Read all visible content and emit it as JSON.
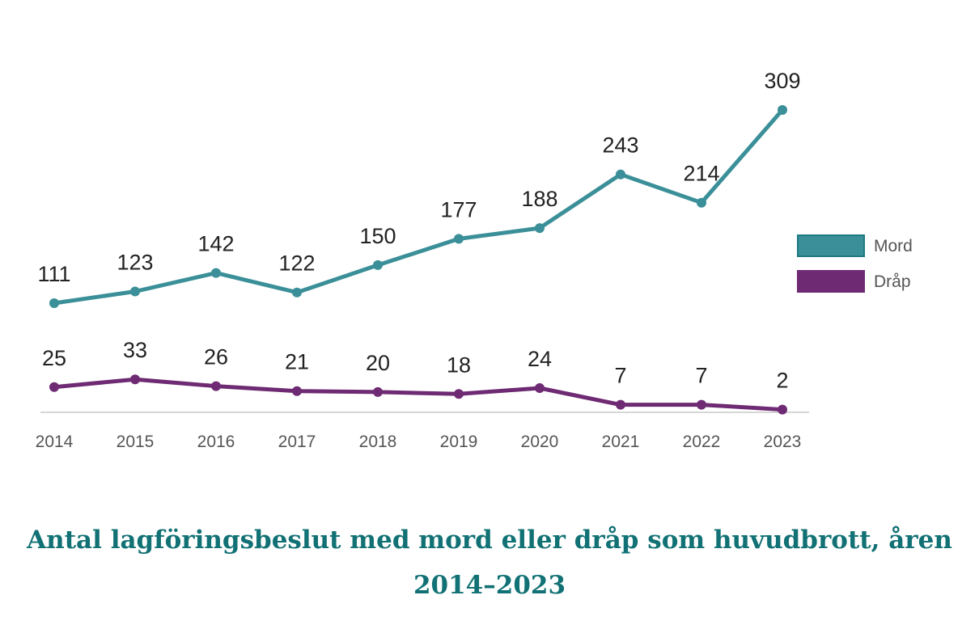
{
  "chart_data": {
    "type": "line",
    "categories": [
      "2014",
      "2015",
      "2016",
      "2017",
      "2018",
      "2019",
      "2020",
      "2021",
      "2022",
      "2023"
    ],
    "series": [
      {
        "name": "Mord",
        "color": "#3a8f98",
        "values": [
          111,
          123,
          142,
          122,
          150,
          177,
          188,
          243,
          214,
          309
        ]
      },
      {
        "name": "Dråp",
        "color": "#6e2a73",
        "values": [
          25,
          33,
          26,
          21,
          20,
          18,
          24,
          7,
          7,
          2
        ]
      }
    ],
    "title": "Antal lagföringsbeslut med mord eller dråp som huvudbrott, åren 2014–2023",
    "xlabel": "",
    "ylabel": "",
    "ylim": [
      0,
      320
    ],
    "grid": false,
    "legend": "right",
    "data_labels": true
  }
}
